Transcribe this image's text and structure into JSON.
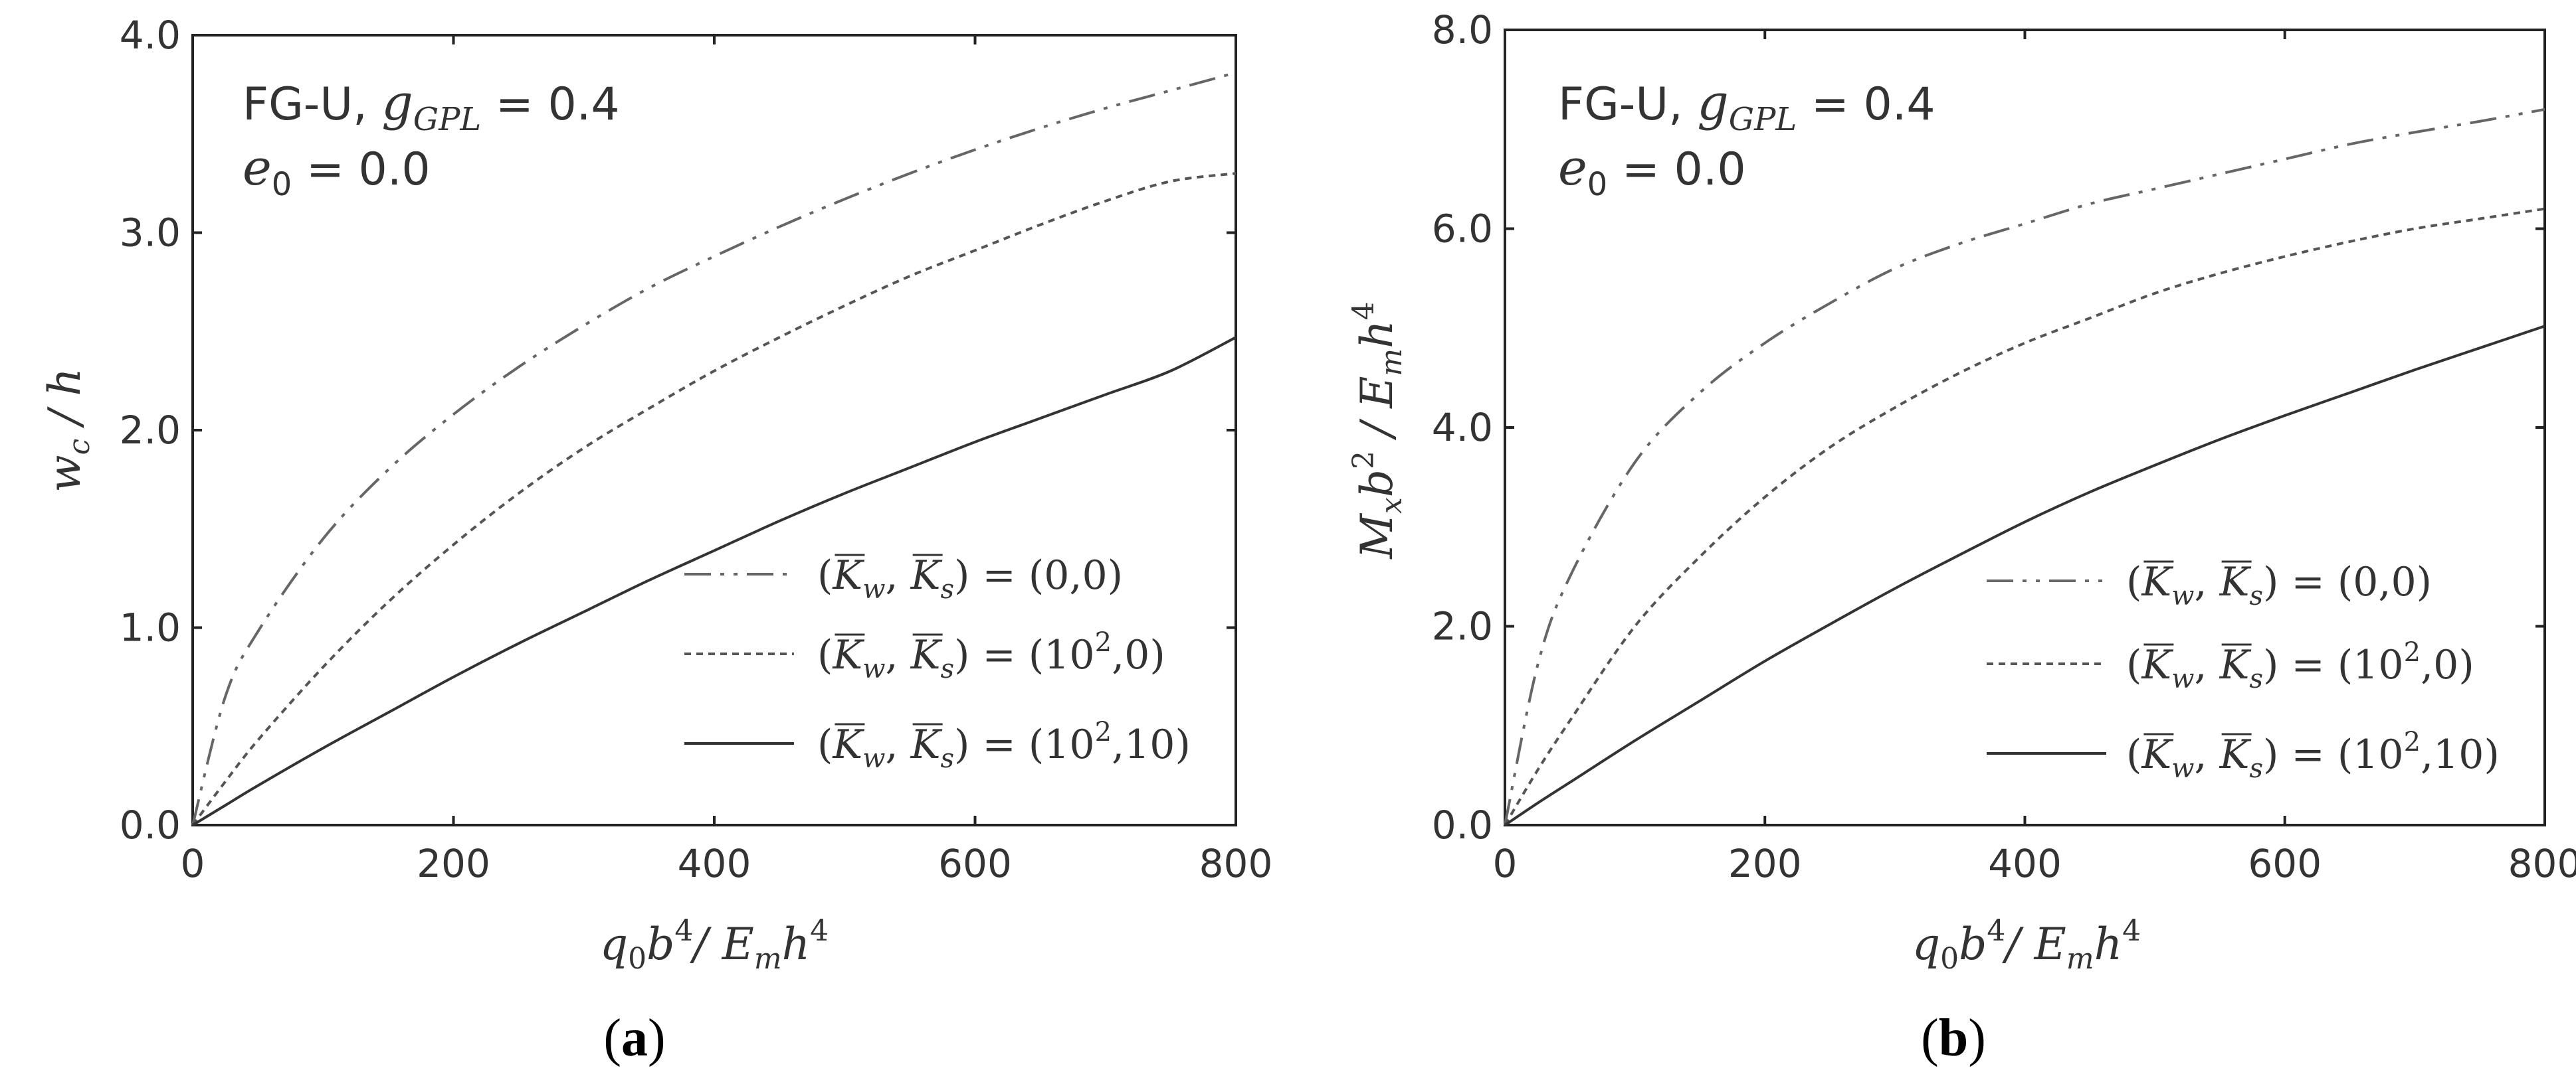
{
  "chart_data": [
    {
      "type": "line",
      "panel_label": "(a)",
      "xlabel": "q0b4/Emh4",
      "ylabel": "wc / h",
      "xlim": [
        0,
        800
      ],
      "ylim": [
        0,
        4.0
      ],
      "x_ticks": [
        "0",
        "200",
        "400",
        "600",
        "800"
      ],
      "y_ticks": [
        "0.0",
        "1.0",
        "2.0",
        "3.0",
        "4.0"
      ],
      "annotations": [
        "FG-U, gGPL = 0.4",
        "e0 = 0.0"
      ],
      "legend_position": "bottom-right",
      "x": [
        0,
        25,
        50,
        100,
        150,
        200,
        250,
        300,
        350,
        400,
        450,
        500,
        550,
        600,
        650,
        700,
        750,
        800
      ],
      "series": [
        {
          "name": "(Kw, Ks) = (0,0)",
          "style": "dash-dot",
          "values": [
            0,
            0.65,
            0.98,
            1.45,
            1.8,
            2.08,
            2.32,
            2.53,
            2.72,
            2.88,
            3.03,
            3.17,
            3.3,
            3.42,
            3.53,
            3.63,
            3.72,
            3.81
          ]
        },
        {
          "name": "(Kw, Ks) = (102,0)",
          "style": "dashed",
          "values": [
            0,
            0.22,
            0.43,
            0.8,
            1.13,
            1.42,
            1.68,
            1.91,
            2.11,
            2.3,
            2.47,
            2.63,
            2.78,
            2.91,
            3.04,
            3.16,
            3.26,
            3.3
          ]
        },
        {
          "name": "(Kw, Ks) = (102,10)",
          "style": "solid",
          "values": [
            0,
            0.1,
            0.2,
            0.39,
            0.57,
            0.75,
            0.92,
            1.08,
            1.24,
            1.39,
            1.54,
            1.68,
            1.81,
            1.94,
            2.06,
            2.18,
            2.3,
            2.47
          ]
        }
      ]
    },
    {
      "type": "line",
      "panel_label": "(b)",
      "xlabel": "q0b4/Emh4",
      "ylabel": "Mxb2 / Emh4",
      "xlim": [
        0,
        800
      ],
      "ylim": [
        0,
        8.0
      ],
      "x_ticks": [
        "0",
        "200",
        "400",
        "600",
        "800"
      ],
      "y_ticks": [
        "0.0",
        "2.0",
        "4.0",
        "6.0",
        "8.0"
      ],
      "annotations": [
        "FG-U, gGPL = 0.4",
        "e0 = 0.0"
      ],
      "legend_position": "bottom-right",
      "x": [
        0,
        25,
        50,
        100,
        150,
        200,
        250,
        300,
        350,
        400,
        450,
        500,
        550,
        600,
        650,
        700,
        750,
        800
      ],
      "series": [
        {
          "name": "(Kw, Ks) = (0,0)",
          "style": "dash-dot",
          "values": [
            0,
            1.6,
            2.5,
            3.65,
            4.35,
            4.85,
            5.25,
            5.6,
            5.85,
            6.05,
            6.25,
            6.4,
            6.55,
            6.7,
            6.85,
            6.97,
            7.08,
            7.2
          ]
        },
        {
          "name": "(Kw, Ks) = (102,0)",
          "style": "dashed",
          "values": [
            0,
            0.55,
            1.05,
            2.0,
            2.7,
            3.3,
            3.8,
            4.2,
            4.55,
            4.85,
            5.1,
            5.35,
            5.55,
            5.72,
            5.87,
            6.0,
            6.1,
            6.2
          ]
        },
        {
          "name": "(Kw, Ks) = (102,10)",
          "style": "solid",
          "values": [
            0,
            0.22,
            0.43,
            0.85,
            1.25,
            1.65,
            2.02,
            2.38,
            2.72,
            3.05,
            3.35,
            3.62,
            3.88,
            4.12,
            4.35,
            4.58,
            4.8,
            5.02
          ]
        }
      ]
    }
  ]
}
